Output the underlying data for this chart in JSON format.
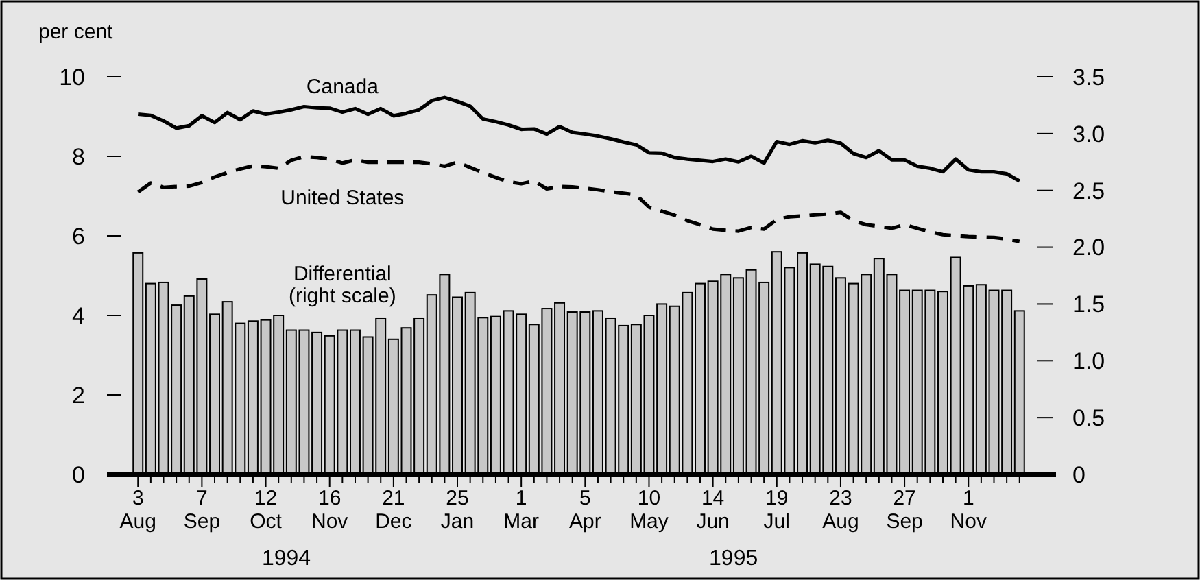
{
  "chart_data": {
    "type": "line",
    "ylabel": "per cent",
    "x": [
      "1994-08-03",
      "1994-08-10",
      "1994-08-17",
      "1994-08-24",
      "1994-08-31",
      "1994-09-07",
      "1994-09-14",
      "1994-09-21",
      "1994-09-28",
      "1994-10-05",
      "1994-10-12",
      "1994-10-19",
      "1994-10-26",
      "1994-11-02",
      "1994-11-09",
      "1994-11-16",
      "1994-11-23",
      "1994-11-30",
      "1994-12-07",
      "1994-12-14",
      "1994-12-21",
      "1994-12-28",
      "1995-01-04",
      "1995-01-11",
      "1995-01-18",
      "1995-01-25",
      "1995-02-01",
      "1995-02-08",
      "1995-02-15",
      "1995-02-22",
      "1995-03-01",
      "1995-03-08",
      "1995-03-15",
      "1995-03-22",
      "1995-03-29",
      "1995-04-05",
      "1995-04-12",
      "1995-04-19",
      "1995-04-26",
      "1995-05-03",
      "1995-05-10",
      "1995-05-17",
      "1995-05-24",
      "1995-05-31",
      "1995-06-07",
      "1995-06-14",
      "1995-06-21",
      "1995-06-28",
      "1995-07-05",
      "1995-07-12",
      "1995-07-19",
      "1995-07-26",
      "1995-08-02",
      "1995-08-09",
      "1995-08-16",
      "1995-08-23",
      "1995-08-30",
      "1995-09-06",
      "1995-09-13",
      "1995-09-20",
      "1995-09-27",
      "1995-10-04",
      "1995-10-11",
      "1995-10-18",
      "1995-10-25",
      "1995-11-01",
      "1995-11-08",
      "1995-11-15",
      "1995-11-22",
      "1995-11-29"
    ],
    "xlim": [
      "1994-07-17",
      "1995-12-19"
    ],
    "xticks": [
      {
        "value": "1994-08-03",
        "label": "3 Aug"
      },
      {
        "value": "1994-08-10",
        "label": null
      },
      {
        "value": "1994-08-17",
        "label": null
      },
      {
        "value": "1994-08-24",
        "label": null
      },
      {
        "value": "1994-08-31",
        "label": null
      },
      {
        "value": "1994-09-07",
        "label": "7 Sep"
      },
      {
        "value": "1994-09-14",
        "label": null
      },
      {
        "value": "1994-09-21",
        "label": null
      },
      {
        "value": "1994-09-28",
        "label": null
      },
      {
        "value": "1994-10-05",
        "label": null
      },
      {
        "value": "1994-10-12",
        "label": "12 Oct"
      },
      {
        "value": "1994-10-19",
        "label": null
      },
      {
        "value": "1994-10-26",
        "label": null
      },
      {
        "value": "1994-11-02",
        "label": null
      },
      {
        "value": "1994-11-09",
        "label": null
      },
      {
        "value": "1994-11-16",
        "label": "16 Nov"
      },
      {
        "value": "1994-11-23",
        "label": null
      },
      {
        "value": "1994-11-30",
        "label": null
      },
      {
        "value": "1994-12-07",
        "label": null
      },
      {
        "value": "1994-12-14",
        "label": null
      },
      {
        "value": "1994-12-21",
        "label": "21 Dec"
      },
      {
        "value": "1994-12-28",
        "label": null
      },
      {
        "value": "1995-01-04",
        "label": null
      },
      {
        "value": "1995-01-11",
        "label": null
      },
      {
        "value": "1995-01-18",
        "label": null
      },
      {
        "value": "1995-01-25",
        "label": "25 Jan"
      },
      {
        "value": "1995-02-01",
        "label": null
      },
      {
        "value": "1995-02-08",
        "label": null
      },
      {
        "value": "1995-02-15",
        "label": null
      },
      {
        "value": "1995-02-22",
        "label": null
      },
      {
        "value": "1995-03-01",
        "label": "1 Mar"
      },
      {
        "value": "1995-03-08",
        "label": null
      },
      {
        "value": "1995-03-15",
        "label": null
      },
      {
        "value": "1995-03-22",
        "label": null
      },
      {
        "value": "1995-03-29",
        "label": null
      },
      {
        "value": "1995-04-05",
        "label": "5 Apr"
      },
      {
        "value": "1995-04-12",
        "label": null
      },
      {
        "value": "1995-04-19",
        "label": null
      },
      {
        "value": "1995-04-26",
        "label": null
      },
      {
        "value": "1995-05-03",
        "label": null
      },
      {
        "value": "1995-05-10",
        "label": "10 May"
      },
      {
        "value": "1995-05-17",
        "label": null
      },
      {
        "value": "1995-05-24",
        "label": null
      },
      {
        "value": "1995-05-31",
        "label": null
      },
      {
        "value": "1995-06-07",
        "label": null
      },
      {
        "value": "1995-06-14",
        "label": "14 Jun"
      },
      {
        "value": "1995-06-21",
        "label": null
      },
      {
        "value": "1995-06-28",
        "label": null
      },
      {
        "value": "1995-07-05",
        "label": null
      },
      {
        "value": "1995-07-12",
        "label": null
      },
      {
        "value": "1995-07-19",
        "label": "19 Jul"
      },
      {
        "value": "1995-07-26",
        "label": null
      },
      {
        "value": "1995-08-02",
        "label": null
      },
      {
        "value": "1995-08-09",
        "label": null
      },
      {
        "value": "1995-08-16",
        "label": null
      },
      {
        "value": "1995-08-23",
        "label": "23 Aug"
      },
      {
        "value": "1995-08-30",
        "label": null
      },
      {
        "value": "1995-09-06",
        "label": null
      },
      {
        "value": "1995-09-13",
        "label": null
      },
      {
        "value": "1995-09-20",
        "label": null
      },
      {
        "value": "1995-09-27",
        "label": "27 Sep"
      },
      {
        "value": "1995-10-04",
        "label": null
      },
      {
        "value": "1995-10-11",
        "label": null
      },
      {
        "value": "1995-10-18",
        "label": null
      },
      {
        "value": "1995-10-25",
        "label": null
      },
      {
        "value": "1995-11-01",
        "label": "1 Nov"
      },
      {
        "value": "1995-11-08",
        "label": null
      },
      {
        "value": "1995-11-15",
        "label": null
      },
      {
        "value": "1995-11-22",
        "label": null
      },
      {
        "value": "1995-11-29",
        "label": null
      }
    ],
    "ylim": [
      0,
      10
    ],
    "yticks": [
      0,
      2,
      4,
      6,
      8,
      10
    ],
    "y2lim": [
      0,
      3.5
    ],
    "y2ticks": [
      0,
      {
        "value": 0.5,
        "label": "0.5"
      },
      {
        "value": 1,
        "label": "1.0"
      },
      {
        "value": 1.5,
        "label": "1.5"
      },
      {
        "value": 2,
        "label": "2.0"
      },
      {
        "value": 2.5,
        "label": "2.5"
      },
      {
        "value": 3,
        "label": "3.0"
      },
      {
        "value": 3.5,
        "label": "3.5"
      }
    ],
    "annotations": [
      "1994",
      "1995"
    ],
    "series": [
      {
        "name": "Differential (right scale)",
        "type": "bar",
        "axis": "y2",
        "color": "#c8c8c8",
        "values": [
          1.95,
          1.68,
          1.69,
          1.49,
          1.57,
          1.72,
          1.41,
          1.52,
          1.33,
          1.35,
          1.36,
          1.4,
          1.27,
          1.27,
          1.25,
          1.22,
          1.27,
          1.27,
          1.21,
          1.37,
          1.19,
          1.29,
          1.37,
          1.58,
          1.76,
          1.56,
          1.6,
          1.38,
          1.39,
          1.44,
          1.41,
          1.32,
          1.46,
          1.51,
          1.43,
          1.43,
          1.44,
          1.37,
          1.31,
          1.32,
          1.4,
          1.5,
          1.48,
          1.6,
          1.68,
          1.7,
          1.76,
          1.73,
          1.8,
          1.69,
          1.96,
          1.82,
          1.95,
          1.85,
          1.83,
          1.73,
          1.68,
          1.76,
          1.9,
          1.76,
          1.62,
          1.62,
          1.62,
          1.61,
          1.91,
          1.66,
          1.67,
          1.62,
          1.62,
          1.44
        ]
      },
      {
        "name": "Canada",
        "color": "#000000",
        "line_style": "solid",
        "values": [
          9.06,
          9.03,
          8.89,
          8.71,
          8.77,
          9.02,
          8.85,
          9.1,
          8.92,
          9.14,
          9.06,
          9.11,
          9.17,
          9.25,
          9.22,
          9.21,
          9.11,
          9.2,
          9.06,
          9.2,
          9.02,
          9.08,
          9.17,
          9.4,
          9.48,
          9.38,
          9.26,
          8.94,
          8.87,
          8.79,
          8.68,
          8.69,
          8.56,
          8.75,
          8.6,
          8.56,
          8.51,
          8.44,
          8.36,
          8.29,
          8.09,
          8.08,
          7.97,
          7.93,
          7.9,
          7.87,
          7.93,
          7.86,
          8.0,
          7.83,
          8.37,
          8.3,
          8.39,
          8.34,
          8.4,
          8.33,
          8.07,
          7.97,
          8.14,
          7.91,
          7.91,
          7.75,
          7.7,
          7.61,
          7.93,
          7.66,
          7.61,
          7.61,
          7.56,
          7.38
        ]
      },
      {
        "name": "United States",
        "color": "#000000",
        "line_style": "dashed",
        "values": [
          7.1,
          7.33,
          7.22,
          7.24,
          7.25,
          7.34,
          7.48,
          7.59,
          7.68,
          7.76,
          7.74,
          7.7,
          7.9,
          7.99,
          7.97,
          7.93,
          7.83,
          7.91,
          7.85,
          7.85,
          7.85,
          7.85,
          7.85,
          7.81,
          7.75,
          7.85,
          7.72,
          7.59,
          7.47,
          7.36,
          7.31,
          7.38,
          7.18,
          7.24,
          7.23,
          7.2,
          7.16,
          7.11,
          7.07,
          7.03,
          6.72,
          6.62,
          6.52,
          6.38,
          6.28,
          6.17,
          6.14,
          6.12,
          6.21,
          6.17,
          6.41,
          6.48,
          6.5,
          6.53,
          6.55,
          6.59,
          6.38,
          6.28,
          6.24,
          6.19,
          6.28,
          6.19,
          6.1,
          6.03,
          6.0,
          5.98,
          5.97,
          5.96,
          5.92,
          5.86
        ]
      }
    ]
  }
}
